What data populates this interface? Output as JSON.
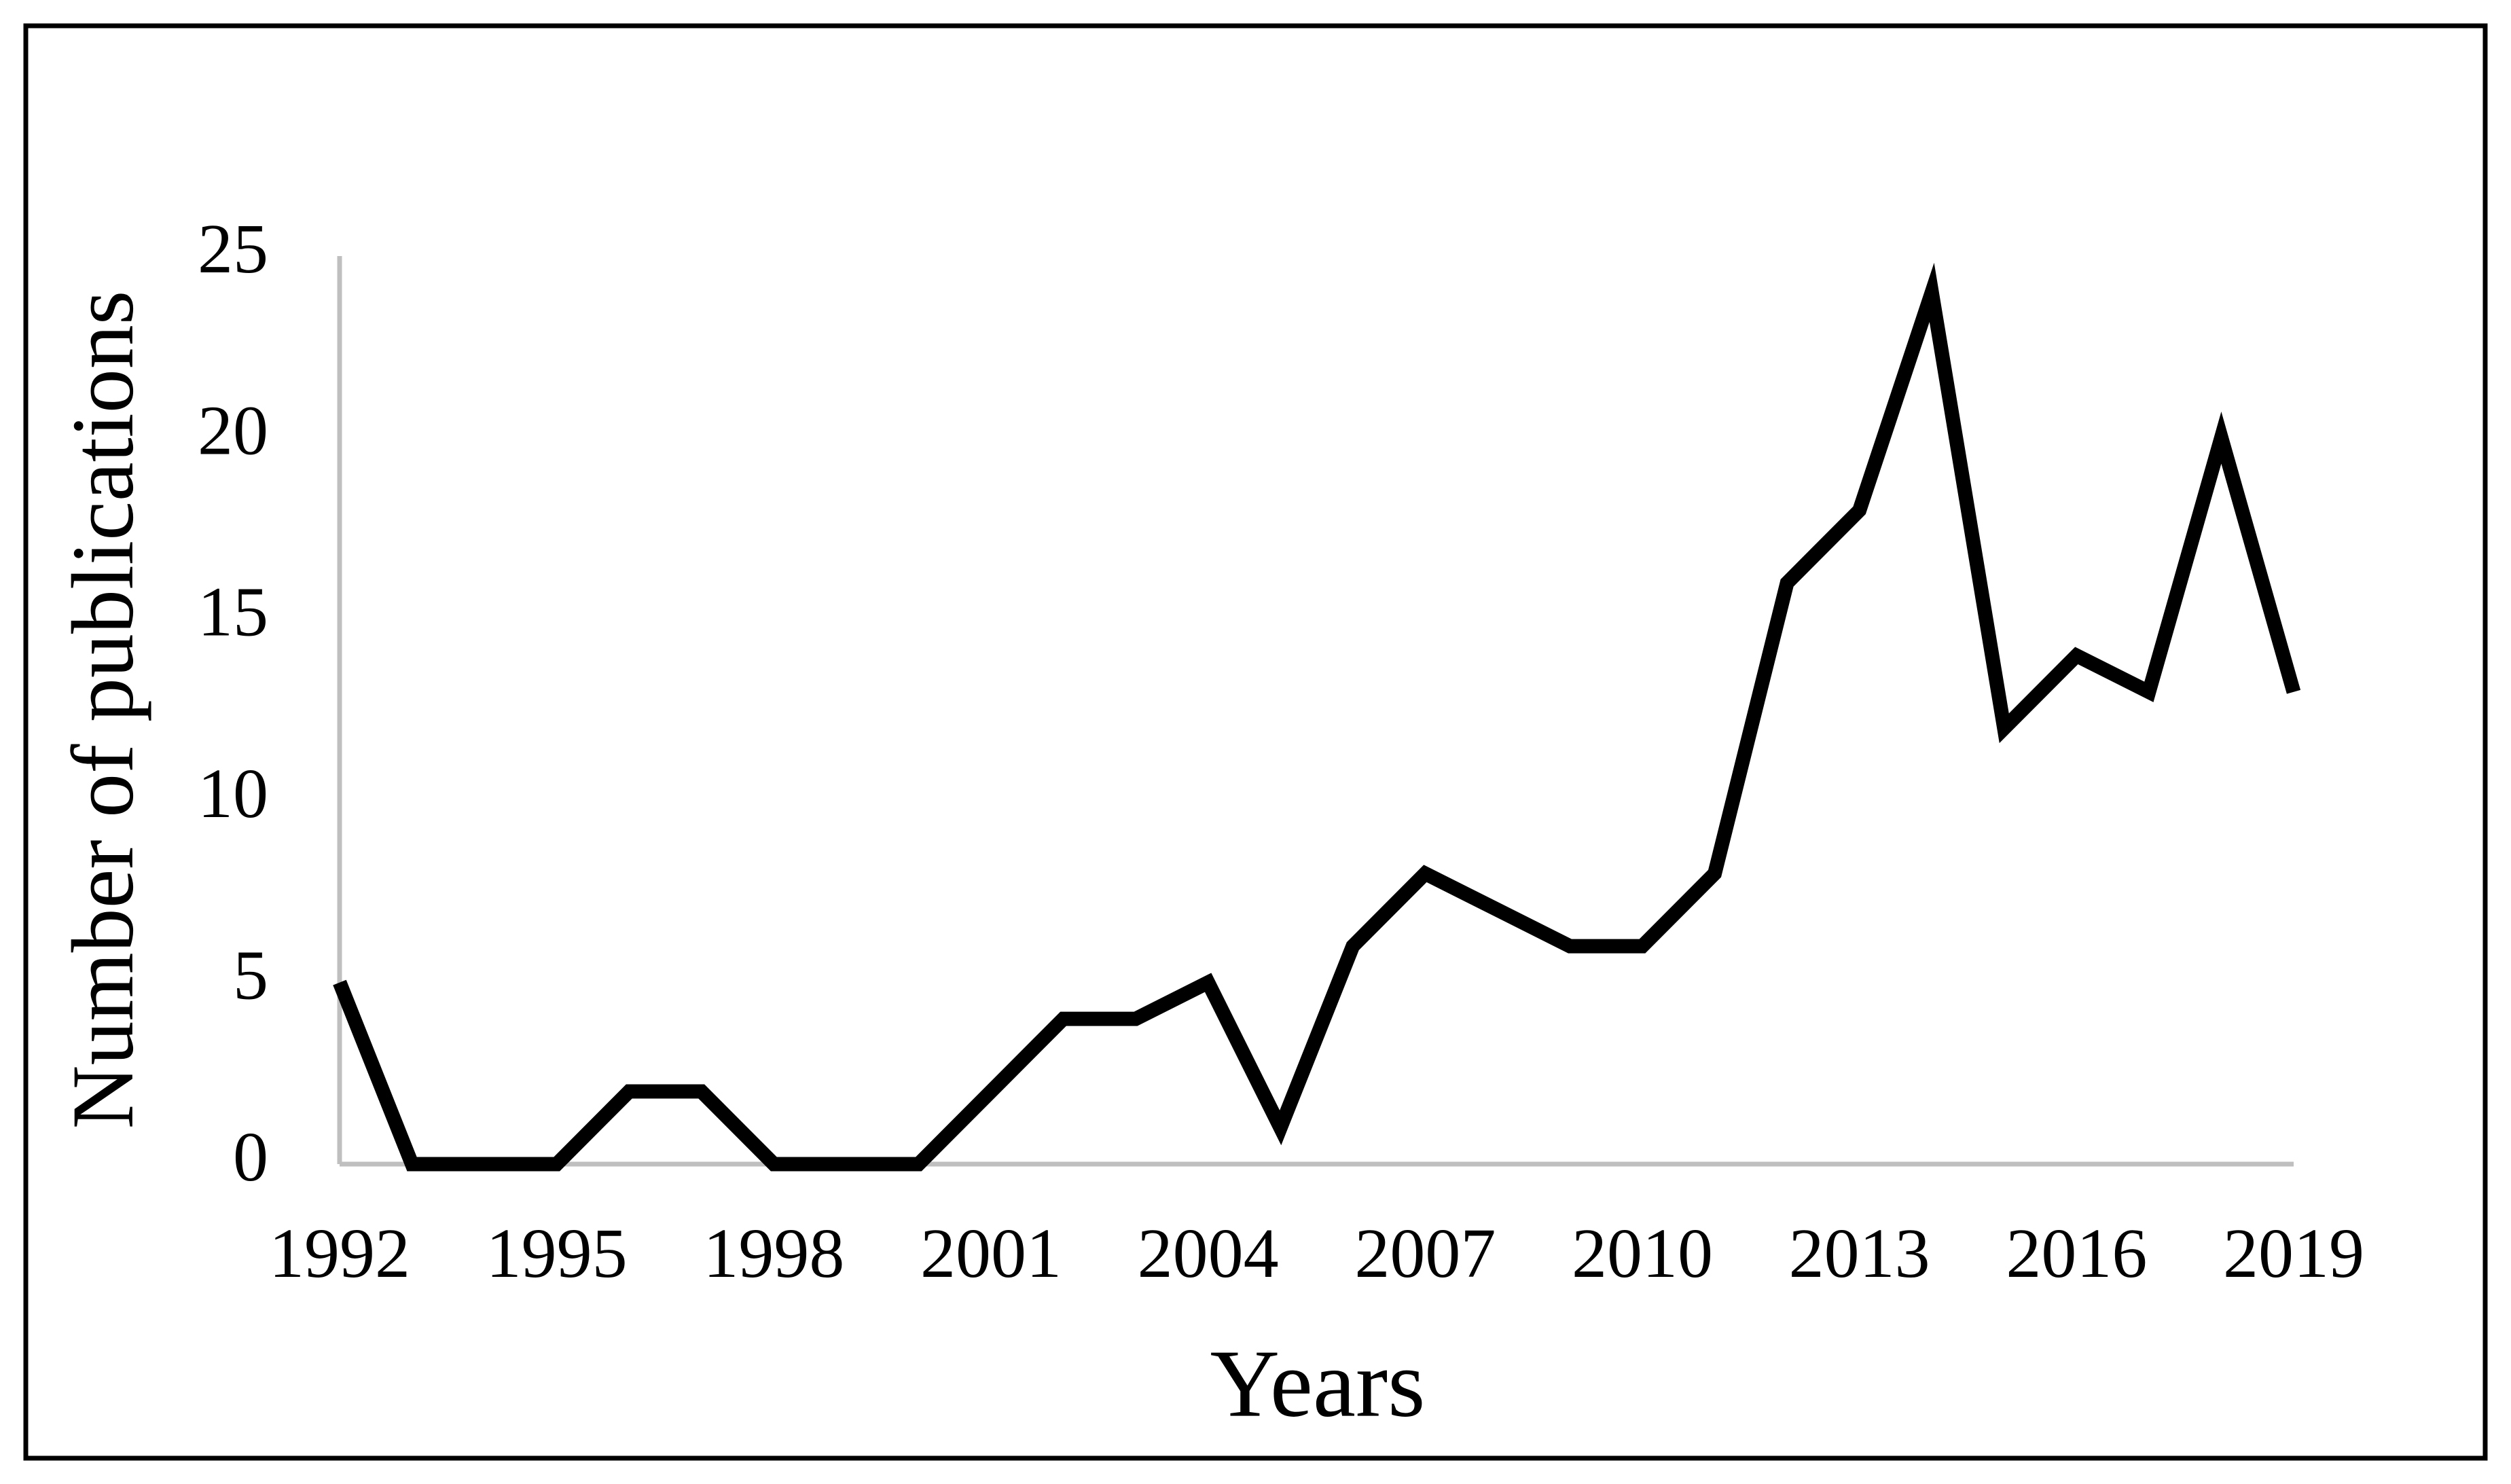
{
  "chart_data": {
    "type": "line",
    "x_label": "Years",
    "y_label": "Number of publications",
    "x": [
      1992,
      1993,
      1994,
      1995,
      1996,
      1997,
      1998,
      1999,
      2000,
      2001,
      2002,
      2003,
      2004,
      2005,
      2006,
      2007,
      2008,
      2009,
      2010,
      2011,
      2012,
      2013,
      2014,
      2015,
      2016,
      2017,
      2018,
      2019
    ],
    "series": [
      {
        "color": "#000000",
        "values": [
          5,
          0,
          0,
          0,
          2,
          2,
          0,
          0,
          0,
          2,
          4,
          4,
          5,
          1,
          6,
          8,
          7,
          6,
          6,
          8,
          16,
          18,
          24,
          12,
          14,
          13,
          20,
          13
        ]
      }
    ],
    "xlim": [
      1992,
      2019
    ],
    "xticks": [
      1992,
      1995,
      1998,
      2001,
      2004,
      2007,
      2010,
      2013,
      2016,
      2019
    ],
    "ylim": [
      0,
      25
    ],
    "yticks": [
      0,
      5,
      10,
      15,
      20,
      25
    ],
    "grid": false
  }
}
